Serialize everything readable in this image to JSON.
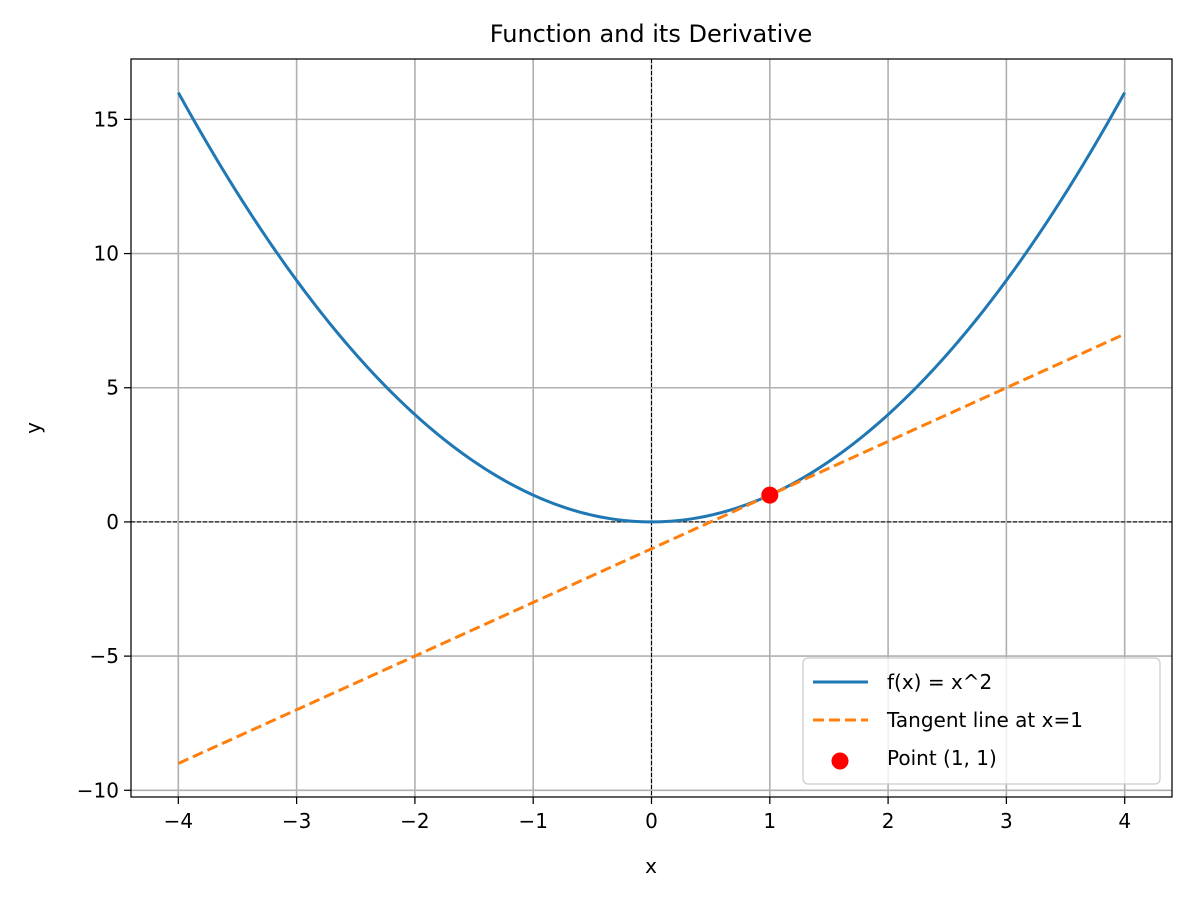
{
  "chart_data": {
    "type": "line",
    "title": "Function and its Derivative",
    "xlabel": "x",
    "ylabel": "y",
    "xlim": [
      -4.4,
      4.4
    ],
    "ylim": [
      -10.25,
      17.25
    ],
    "x_ticks": [
      -4,
      -3,
      -2,
      -1,
      0,
      1,
      2,
      3,
      4
    ],
    "x_tick_labels": [
      "−4",
      "−3",
      "−2",
      "−1",
      "0",
      "1",
      "2",
      "3",
      "4"
    ],
    "y_ticks": [
      -10,
      -5,
      0,
      5,
      10,
      15
    ],
    "y_tick_labels": [
      "−10",
      "−5",
      "0",
      "5",
      "10",
      "15"
    ],
    "grid": true,
    "reference_lines": {
      "x": 0,
      "y": 0,
      "style": "dashed",
      "color": "#000000"
    },
    "legend_position": "lower-right",
    "series": [
      {
        "name": "f(x) = x^2",
        "kind": "line",
        "style": "solid",
        "color": "#1f77b4",
        "x": [
          -4,
          -3.5,
          -3,
          -2.5,
          -2,
          -1.5,
          -1,
          -0.5,
          0,
          0.5,
          1,
          1.5,
          2,
          2.5,
          3,
          3.5,
          4
        ],
        "y": [
          16,
          12.25,
          9,
          6.25,
          4,
          2.25,
          1,
          0.25,
          0,
          0.25,
          1,
          2.25,
          4,
          6.25,
          9,
          12.25,
          16
        ]
      },
      {
        "name": "Tangent line at x=1",
        "kind": "line",
        "style": "dashed",
        "color": "#ff7f0e",
        "x": [
          -4,
          4
        ],
        "y": [
          -9,
          7
        ]
      },
      {
        "name": "Point (1, 1)",
        "kind": "scatter",
        "color": "#ff0000",
        "x": [
          1
        ],
        "y": [
          1
        ]
      }
    ]
  }
}
